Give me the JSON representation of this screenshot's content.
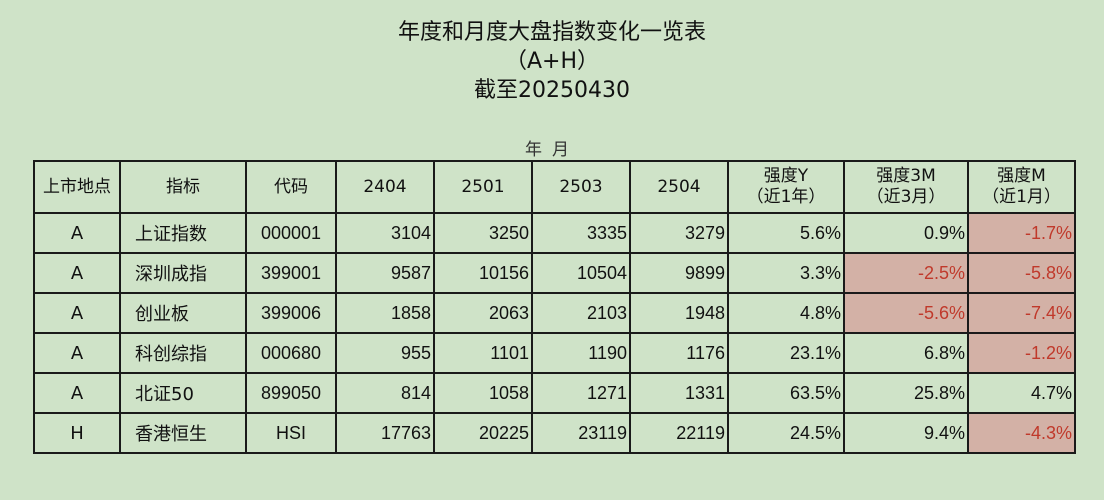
{
  "title": {
    "line1": "年度和月度大盘指数变化一览表",
    "line2": "（A+H）",
    "line3": "截至20250430"
  },
  "subtitle": "年月",
  "table": {
    "headers": {
      "market": "上市地点",
      "index": "指标",
      "code": "代码",
      "p1": "2404",
      "p2": "2501",
      "p3": "2503",
      "p4": "2504",
      "sy_main": "强度Y",
      "sy_sub": "（近1年）",
      "s3_main": "强度3M",
      "s3_sub": "（近3月）",
      "sm_main": "强度M",
      "sm_sub": "（近1月）"
    },
    "rows": [
      {
        "market": "A",
        "name": "上证指数",
        "code": "000001",
        "p1": "3104",
        "p2": "3250",
        "p3": "3335",
        "p4": "3279",
        "sy": "5.6%",
        "s3": "0.9%",
        "sm": "-1.7%"
      },
      {
        "market": "A",
        "name": "深圳成指",
        "code": "399001",
        "p1": "9587",
        "p2": "10156",
        "p3": "10504",
        "p4": "9899",
        "sy": "3.3%",
        "s3": "-2.5%",
        "sm": "-5.8%"
      },
      {
        "market": "A",
        "name": "创业板",
        "code": "399006",
        "p1": "1858",
        "p2": "2063",
        "p3": "2103",
        "p4": "1948",
        "sy": "4.8%",
        "s3": "-5.6%",
        "sm": "-7.4%"
      },
      {
        "market": "A",
        "name": "科创综指",
        "code": "000680",
        "p1": "955",
        "p2": "1101",
        "p3": "1190",
        "p4": "1176",
        "sy": "23.1%",
        "s3": "6.8%",
        "sm": "-1.2%"
      },
      {
        "market": "A",
        "name": "北证50",
        "code": "899050",
        "p1": "814",
        "p2": "1058",
        "p3": "1271",
        "p4": "1331",
        "sy": "63.5%",
        "s3": "25.8%",
        "sm": "4.7%"
      },
      {
        "market": "H",
        "name": "香港恒生",
        "code": "HSI",
        "p1": "17763",
        "p2": "20225",
        "p3": "23119",
        "p4": "22119",
        "sy": "24.5%",
        "s3": "9.4%",
        "sm": "-4.3%"
      }
    ],
    "negative_bg": "#d3b1a6",
    "negative_text": "#c0392b"
  }
}
